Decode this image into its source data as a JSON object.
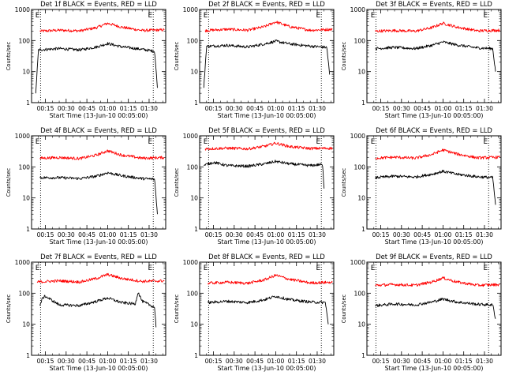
{
  "chart_data": {
    "type": "line",
    "layout": "3x3 grid",
    "ylabel": "Counts/sec",
    "xlabel": "Start Time (13-Jun-10 00:05:00)",
    "x_tick_labels": [
      "00:15",
      "00:30",
      "00:45",
      "01:00",
      "01:15",
      "01:30"
    ],
    "y_tick_labels": [
      "1",
      "10",
      "100",
      "1000"
    ],
    "y_scale": "log",
    "ylim": [
      1,
      1000
    ],
    "xlim_minutes_after_start": [
      0,
      97
    ],
    "x_tick_minutes_after_start": [
      10,
      25,
      40,
      55,
      70,
      85
    ],
    "marker_label": "E",
    "colors": {
      "events": "#000000",
      "lld": "#ff0000"
    },
    "panels": [
      {
        "title": "Det 1f BLACK = Events, RED = LLD",
        "markers_minutes": [
          6.5,
          88
        ],
        "series": [
          {
            "color": "#ff0000",
            "x": [
              6,
              20,
              35,
              47,
              55,
              65,
              80,
              96
            ],
            "y": [
              200,
              215,
              205,
              260,
              360,
              270,
              210,
              220
            ]
          },
          {
            "color": "#000000",
            "x": [
              3,
              5,
              20,
              35,
              47,
              55,
              65,
              80,
              89,
              91
            ],
            "y": [
              2,
              50,
              55,
              50,
              62,
              80,
              63,
              52,
              45,
              3
            ]
          }
        ]
      },
      {
        "title": "Det 2f BLACK = Events, RED = LLD",
        "markers_minutes": [
          6.5,
          88
        ],
        "series": [
          {
            "color": "#ff0000",
            "x": [
              4,
              20,
              35,
              47,
              55,
              65,
              80,
              96
            ],
            "y": [
              210,
              230,
              215,
              280,
              400,
              280,
              215,
              230
            ]
          },
          {
            "color": "#000000",
            "x": [
              3,
              5,
              20,
              35,
              47,
              55,
              65,
              80,
              92,
              94
            ],
            "y": [
              3,
              65,
              70,
              62,
              78,
              95,
              78,
              66,
              60,
              8
            ]
          }
        ]
      },
      {
        "title": "Det 3f BLACK = Events, RED = LLD",
        "markers_minutes": [
          6.5,
          88
        ],
        "series": [
          {
            "color": "#ff0000",
            "x": [
              6,
              20,
              35,
              47,
              55,
              65,
              80,
              96
            ],
            "y": [
              200,
              210,
              200,
              260,
              360,
              270,
              205,
              215
            ]
          },
          {
            "color": "#000000",
            "x": [
              6,
              20,
              35,
              47,
              55,
              65,
              80,
              91,
              93
            ],
            "y": [
              55,
              60,
              55,
              70,
              90,
              72,
              58,
              55,
              10
            ]
          }
        ]
      },
      {
        "title": "Det 4f BLACK = Events, RED = LLD",
        "markers_minutes": [
          6.5,
          88
        ],
        "series": [
          {
            "color": "#ff0000",
            "x": [
              6,
              20,
              35,
              47,
              55,
              65,
              80,
              96
            ],
            "y": [
              190,
              200,
              185,
              240,
              330,
              240,
              190,
              200
            ]
          },
          {
            "color": "#000000",
            "x": [
              6,
              20,
              35,
              47,
              55,
              65,
              80,
              89,
              91
            ],
            "y": [
              45,
              45,
              42,
              50,
              65,
              52,
              42,
              40,
              3
            ]
          }
        ]
      },
      {
        "title": "Det 5f BLACK = Events, RED = LLD",
        "markers_minutes": [
          6.5,
          88
        ],
        "series": [
          {
            "color": "#ff0000",
            "x": [
              4,
              20,
              35,
              47,
              55,
              65,
              80,
              96
            ],
            "y": [
              380,
              400,
              380,
              460,
              580,
              450,
              390,
              400
            ]
          },
          {
            "color": "#000000",
            "x": [
              3,
              5,
              10,
              20,
              35,
              47,
              55,
              65,
              80,
              88,
              89,
              90
            ],
            "y": [
              110,
              120,
              140,
              110,
              105,
              125,
              150,
              125,
              110,
              120,
              100,
              20
            ]
          }
        ]
      },
      {
        "title": "Det 6f BLACK = Events, RED = LLD",
        "markers_minutes": [
          6.5,
          88
        ],
        "series": [
          {
            "color": "#ff0000",
            "x": [
              6,
              20,
              35,
              47,
              55,
              65,
              80,
              96
            ],
            "y": [
              190,
              205,
              190,
              250,
              350,
              260,
              195,
              205
            ]
          },
          {
            "color": "#000000",
            "x": [
              6,
              20,
              35,
              47,
              55,
              65,
              80,
              91,
              93
            ],
            "y": [
              45,
              50,
              47,
              58,
              72,
              58,
              48,
              45,
              6
            ]
          }
        ]
      },
      {
        "title": "Det 7f BLACK = Events, RED = LLD",
        "markers_minutes": [
          6.5,
          88
        ],
        "series": [
          {
            "color": "#ff0000",
            "x": [
              4,
              20,
              35,
              47,
              55,
              65,
              80,
              96
            ],
            "y": [
              230,
              250,
              230,
              300,
              400,
              300,
              240,
              250
            ]
          },
          {
            "color": "#000000",
            "x": [
              6,
              8,
              10,
              20,
              35,
              47,
              55,
              65,
              75,
              77,
              80,
              89,
              90
            ],
            "y": [
              40,
              70,
              80,
              42,
              40,
              55,
              70,
              50,
              45,
              110,
              55,
              35,
              8
            ]
          }
        ]
      },
      {
        "title": "Det 8f BLACK = Events, RED = LLD",
        "markers_minutes": [
          6.5,
          88
        ],
        "series": [
          {
            "color": "#ff0000",
            "x": [
              6,
              20,
              35,
              47,
              55,
              65,
              80,
              96
            ],
            "y": [
              210,
              225,
              210,
              270,
              380,
              280,
              215,
              225
            ]
          },
          {
            "color": "#000000",
            "x": [
              6,
              20,
              35,
              47,
              55,
              65,
              80,
              91,
              93
            ],
            "y": [
              50,
              55,
              50,
              62,
              80,
              62,
              52,
              50,
              10
            ]
          }
        ]
      },
      {
        "title": "Det 9f BLACK = Events, RED = LLD",
        "markers_minutes": [
          6.5,
          88
        ],
        "series": [
          {
            "color": "#ff0000",
            "x": [
              6,
              20,
              35,
              47,
              55,
              65,
              80,
              96
            ],
            "y": [
              180,
              190,
              180,
              230,
              310,
              230,
              180,
              190
            ]
          },
          {
            "color": "#000000",
            "x": [
              6,
              20,
              35,
              47,
              55,
              65,
              80,
              91,
              93
            ],
            "y": [
              40,
              45,
              42,
              52,
              65,
              52,
              44,
              42,
              15
            ]
          }
        ]
      }
    ]
  }
}
